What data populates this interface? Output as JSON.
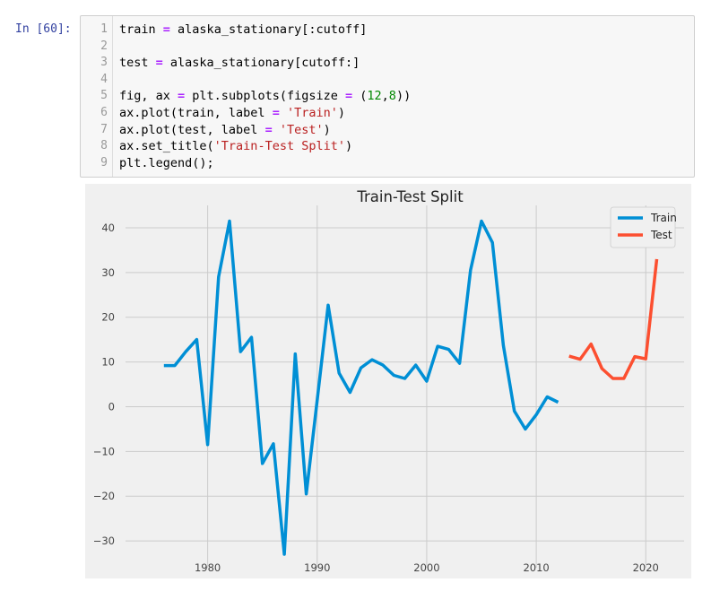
{
  "cell": {
    "prompt": "In [60]:",
    "lines": [
      {
        "n": "1",
        "code": "train = alaska_stationary[:cutoff]"
      },
      {
        "n": "2",
        "code": ""
      },
      {
        "n": "3",
        "code": "test = alaska_stationary[cutoff:]"
      },
      {
        "n": "4",
        "code": ""
      },
      {
        "n": "5",
        "code": "fig, ax = plt.subplots(figsize = (12,8))"
      },
      {
        "n": "6",
        "code": "ax.plot(train, label = 'Train')"
      },
      {
        "n": "7",
        "code": "ax.plot(test, label = 'Test')"
      },
      {
        "n": "8",
        "code": "ax.set_title('Train-Test Split')"
      },
      {
        "n": "9",
        "code": "plt.legend();"
      }
    ]
  },
  "chart_data": {
    "type": "line",
    "title": "Train-Test Split",
    "xlabel": "",
    "ylabel": "",
    "xlim": [
      1972.5,
      2023.5
    ],
    "ylim": [
      -36,
      45
    ],
    "xticks": [
      1980,
      1990,
      2000,
      2010,
      2020
    ],
    "yticks": [
      -30,
      -20,
      -10,
      0,
      10,
      20,
      30,
      40
    ],
    "ytick_labels": [
      "−30",
      "−20",
      "−10",
      "0",
      "10",
      "20",
      "30",
      "40"
    ],
    "grid": true,
    "legend_position": "top-right",
    "series": [
      {
        "name": "Train",
        "color": "#008fd5",
        "x": [
          1976,
          1977,
          1978,
          1979,
          1980,
          1981,
          1982,
          1983,
          1984,
          1985,
          1986,
          1987,
          1988,
          1989,
          1990,
          1991,
          1992,
          1993,
          1994,
          1995,
          1996,
          1997,
          1998,
          1999,
          2000,
          2001,
          2002,
          2003,
          2004,
          2005,
          2006,
          2007,
          2008,
          2009,
          2010,
          2011,
          2012
        ],
        "values": [
          9.2,
          9.2,
          12.3,
          15.0,
          -8.5,
          29.0,
          41.5,
          12.3,
          15.5,
          -12.7,
          -8.3,
          -33.0,
          11.8,
          -19.5,
          1.5,
          22.7,
          7.5,
          3.2,
          8.7,
          10.5,
          9.3,
          7.0,
          6.3,
          9.3,
          5.7,
          13.5,
          12.8,
          9.7,
          30.5,
          41.5,
          36.7,
          13.7,
          -1.0,
          -5.0,
          -1.8,
          2.2,
          1.0
        ]
      },
      {
        "name": "Test",
        "color": "#fc4f30",
        "x": [
          2013,
          2014,
          2015,
          2016,
          2017,
          2018,
          2019,
          2020,
          2021
        ],
        "values": [
          11.3,
          10.6,
          14.0,
          8.5,
          6.3,
          6.3,
          11.2,
          10.7,
          33.0
        ]
      }
    ]
  }
}
